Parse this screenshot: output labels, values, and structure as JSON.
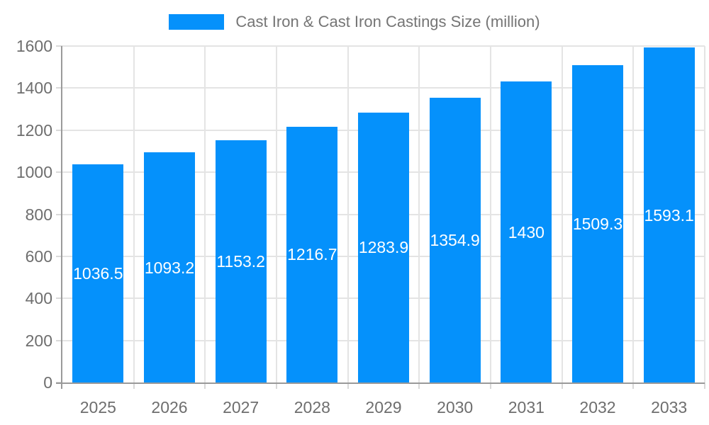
{
  "chart_data": {
    "type": "bar",
    "title": "",
    "legend": "Cast Iron & Cast Iron Castings Size (million)",
    "legend_position": "top-center",
    "categories": [
      "2025",
      "2026",
      "2027",
      "2028",
      "2029",
      "2030",
      "2031",
      "2032",
      "2033"
    ],
    "series": [
      {
        "name": "Cast Iron & Cast Iron Castings Size (million)",
        "values": [
          1036.5,
          1093.2,
          1153.2,
          1216.7,
          1283.9,
          1354.9,
          1430,
          1509.3,
          1593.1
        ],
        "value_labels": [
          "1036.5",
          "1093.2",
          "1153.2",
          "1216.7",
          "1283.9",
          "1354.9",
          "1430",
          "1509.3",
          "1593.1"
        ]
      }
    ],
    "xlabel": "",
    "ylabel": "",
    "ylim": [
      0,
      1600
    ],
    "ytick_step": 200,
    "y_tick_labels": [
      "0",
      "200",
      "400",
      "600",
      "800",
      "1000",
      "1200",
      "1400",
      "1600"
    ],
    "grid": true,
    "colors": {
      "bar": "#0591fb",
      "grid": "#e4e4e4",
      "axis": "#9a9a9a",
      "tick": "#d9d9d9",
      "axis_text": "#6e6e6e",
      "legend_text": "#757575",
      "value_text": "#ffffff",
      "background": "#ffffff"
    }
  }
}
